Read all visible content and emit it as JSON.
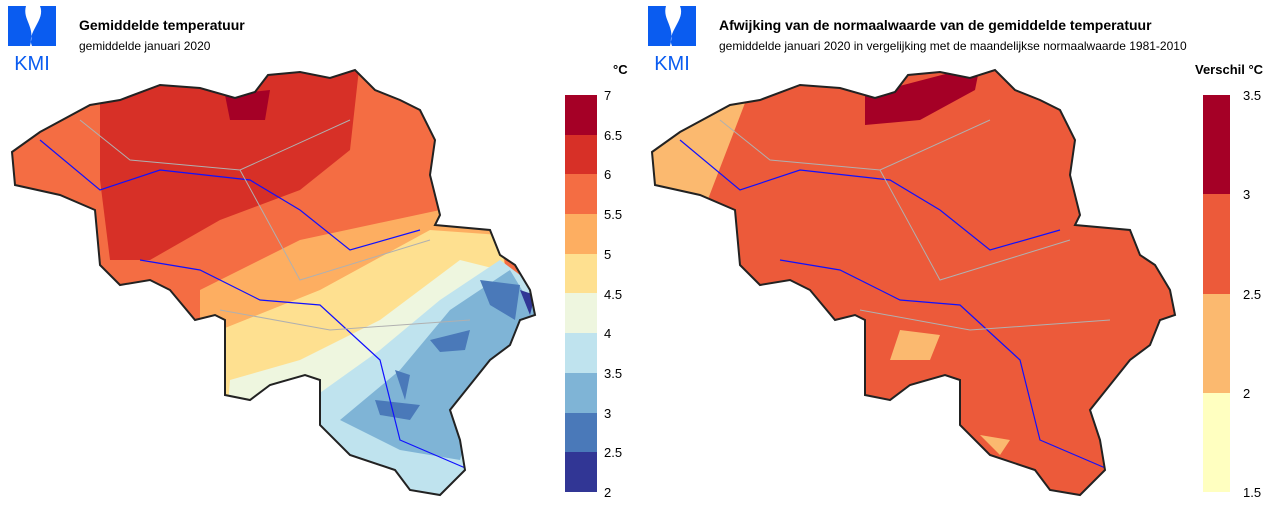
{
  "logo_text": "KMI",
  "brand_color": "#0a5cf0",
  "left": {
    "title": "Gemiddelde temperatuur",
    "subtitle": "gemiddelde januari 2020",
    "unit": "°C",
    "legend": {
      "ticks": [
        "7",
        "6.5",
        "6",
        "5.5",
        "5",
        "4.5",
        "4",
        "3.5",
        "3",
        "2.5",
        "2"
      ],
      "colors": [
        "#a50026",
        "#d73027",
        "#f46d43",
        "#fdae61",
        "#fee090",
        "#eef6df",
        "#bfe3ee",
        "#7fb4d6",
        "#4a79b9",
        "#313695"
      ]
    }
  },
  "right": {
    "title": "Afwijking van de normaalwaarde van de gemiddelde temperatuur",
    "subtitle": "gemiddelde januari 2020 in vergelijking met de maandelijkse normaalwaarde 1981-2010",
    "unit": "Verschil °C",
    "legend": {
      "ticks": [
        "3.5",
        "3",
        "2.5",
        "2",
        "1.5"
      ],
      "colors": [
        "#a50026",
        "#ec5a3a",
        "#fbb96f",
        "#ffffc0"
      ]
    }
  }
}
